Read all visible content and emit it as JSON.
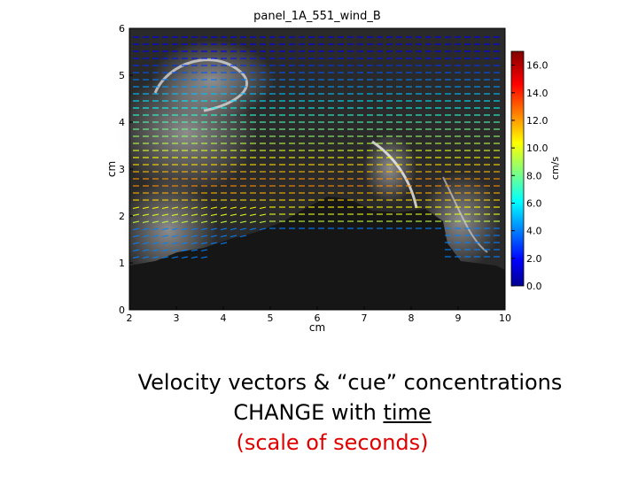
{
  "chart_data": {
    "type": "heatmap",
    "title": "panel_1A_551_wind_B",
    "xlabel": "cm",
    "ylabel": "cm",
    "xlim": [
      2,
      10
    ],
    "ylim": [
      0,
      6
    ],
    "x_ticks": [
      "2",
      "3",
      "4",
      "5",
      "6",
      "7",
      "8",
      "9",
      "10"
    ],
    "y_ticks": [
      "0",
      "1",
      "2",
      "3",
      "4",
      "5",
      "6"
    ],
    "colorbar": {
      "label": "cm/s",
      "range": [
        0,
        17
      ],
      "ticks": [
        "0.0",
        "2.0",
        "4.0",
        "6.0",
        "8.0",
        "10.0",
        "12.0",
        "14.0",
        "16.0"
      ],
      "colormap": "jet"
    },
    "vector_field": {
      "description_visible": "velocity vectors",
      "speed_range": [
        2,
        12
      ]
    }
  },
  "caption": {
    "line1": "Velocity vectors & “cue” concentrations",
    "line2_prefix": "CHANGE with ",
    "line2_time": "time",
    "line3": "(scale of seconds)"
  }
}
